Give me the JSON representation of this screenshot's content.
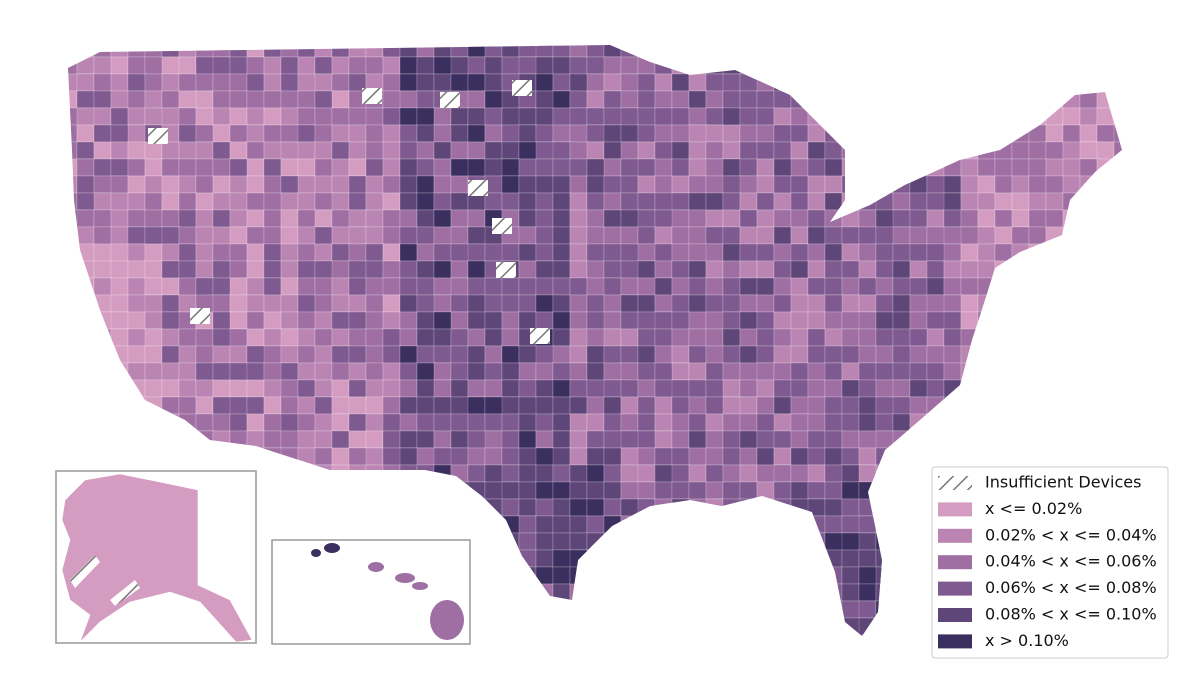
{
  "legend": {
    "items": [
      {
        "label": "Insufficient Devices",
        "pattern": "hatch",
        "color": "#777777"
      },
      {
        "label": "x <= 0.02%",
        "color": "#d59cc2"
      },
      {
        "label": "0.02% < x <= 0.04%",
        "color": "#bb85b3"
      },
      {
        "label": "0.04% < x <= 0.06%",
        "color": "#9f6fa3"
      },
      {
        "label": "0.06% < x <= 0.08%",
        "color": "#7f5a91"
      },
      {
        "label": "0.08% < x <= 0.10%",
        "color": "#5f4679"
      },
      {
        "label": "x > 0.10%",
        "color": "#3a2f5e"
      }
    ]
  }
}
